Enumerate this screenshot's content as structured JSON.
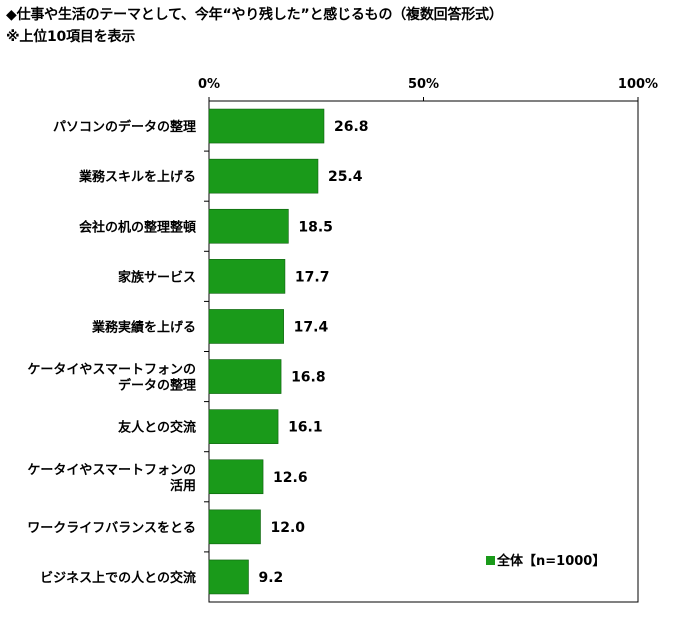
{
  "title_line1": "◆仕事や生活のテーマとして、今年“やり残した”と感じるもの（複数回答形式）",
  "title_line2": "※上位10項目を表示",
  "chart_data": {
    "type": "bar",
    "orientation": "horizontal",
    "categories": [
      [
        "パソコンのデータの整理"
      ],
      [
        "業務スキルを上げる"
      ],
      [
        "会社の机の整理整頓"
      ],
      [
        "家族サービス"
      ],
      [
        "業務実績を上げる"
      ],
      [
        "ケータイやスマートフォンの",
        "データの整理"
      ],
      [
        "友人との交流"
      ],
      [
        "ケータイやスマートフォンの",
        "活用"
      ],
      [
        "ワークライフバランスをとる"
      ],
      [
        "ビジネス上での人との交流"
      ]
    ],
    "series": [
      {
        "name": "全体【n=1000】",
        "values": [
          26.8,
          25.4,
          18.5,
          17.7,
          17.4,
          16.8,
          16.1,
          12.6,
          12.0,
          9.2
        ]
      }
    ],
    "value_labels": [
      "26.8",
      "25.4",
      "18.5",
      "17.7",
      "17.4",
      "16.8",
      "16.1",
      "12.6",
      "12.0",
      "9.2"
    ],
    "xlim": [
      0,
      100
    ],
    "ticks": [
      0,
      50,
      100
    ],
    "tick_labels": [
      "0%",
      "50%",
      "100%"
    ],
    "bar_color": "#1a9a1a",
    "grid": false,
    "legend_position": "bottom-right"
  }
}
